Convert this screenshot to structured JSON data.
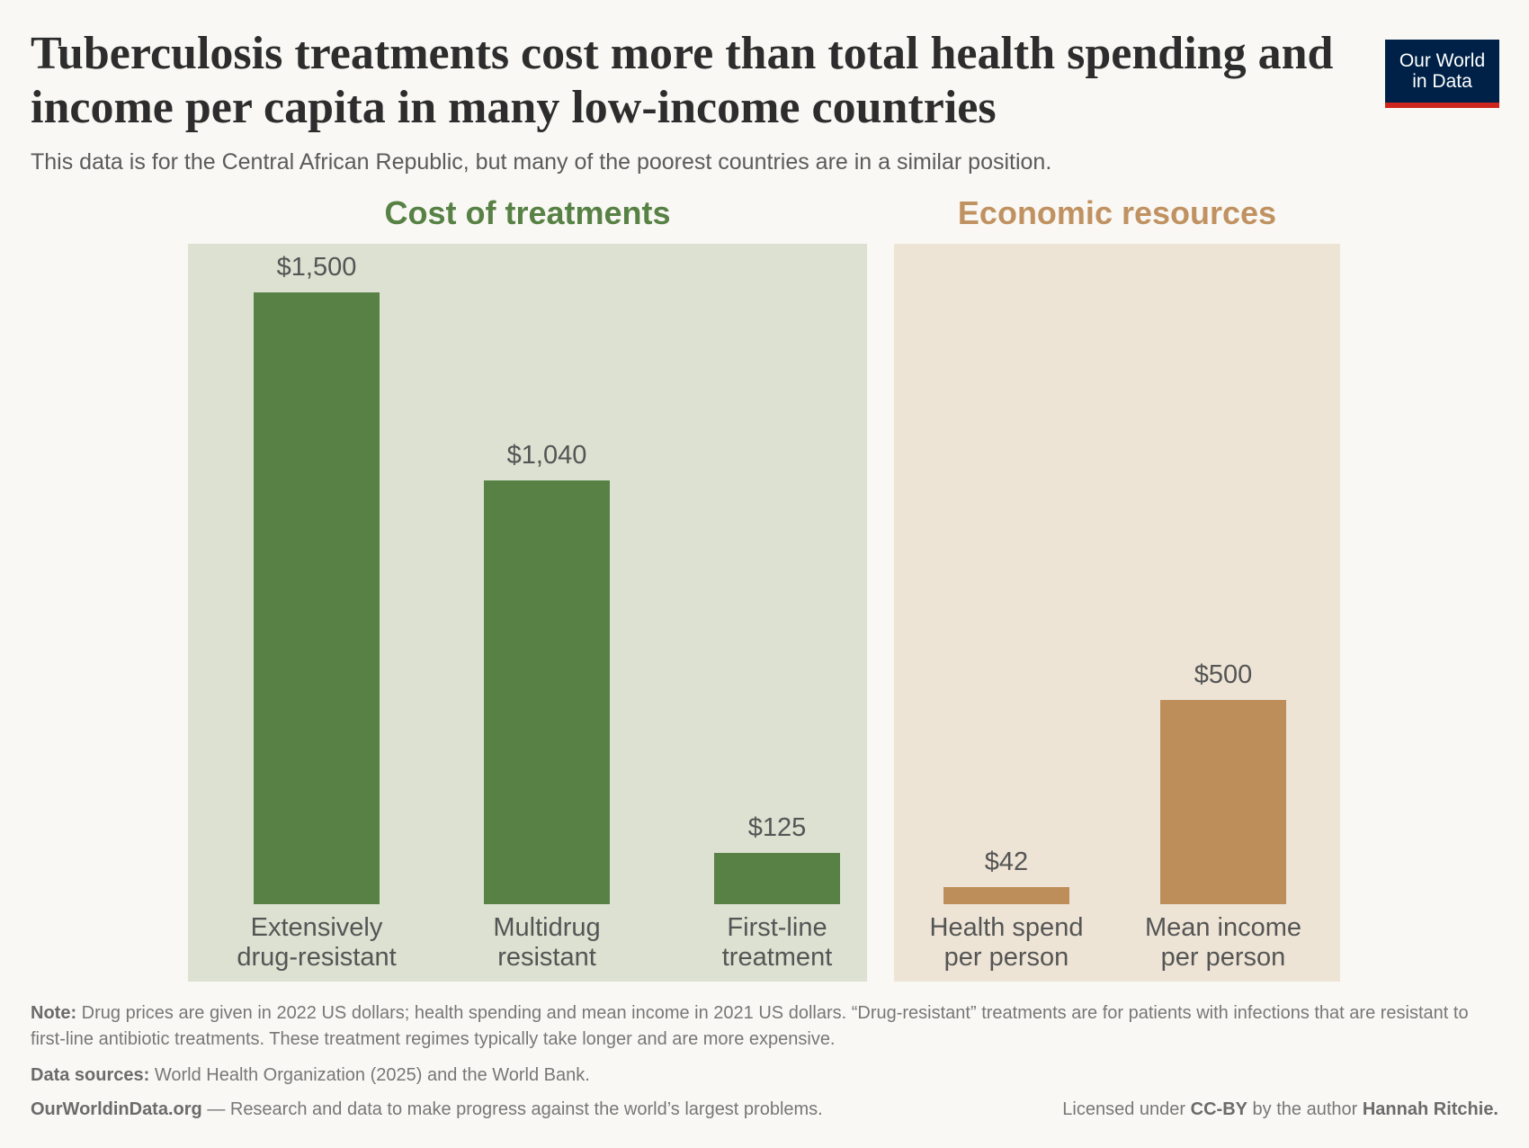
{
  "header": {
    "title": "Tuberculosis treatments cost more than total health spending and income per capita in many low-income countries",
    "subtitle": "This data is for the Central African Republic, but many of the poorest countries are in a similar position.",
    "logo": "Our World in Data"
  },
  "chart_data": {
    "type": "bar",
    "title": "Tuberculosis treatments cost more than total health spending and income per capita in many low-income countries",
    "ylim": [
      0,
      1500
    ],
    "grid": false,
    "groups": [
      {
        "name": "Cost of treatments",
        "color": "#578145",
        "background": "#dce1d1",
        "categories": [
          "Extensively\ndrug-resistant",
          "Multidrug\nresistant",
          "First-line\ntreatment"
        ],
        "values": [
          1500,
          1040,
          125
        ],
        "labels": [
          "$1,500",
          "$1,040",
          "$125"
        ]
      },
      {
        "name": "Economic resources",
        "color": "#be8e5a",
        "background": "#ede4d5",
        "categories": [
          "Health spend\nper person",
          "Mean income\nper person"
        ],
        "values": [
          42,
          500
        ],
        "labels": [
          "$42",
          "$500"
        ]
      }
    ]
  },
  "footer": {
    "note_label": "Note:",
    "note": "Drug prices are given in 2022 US dollars; health spending and mean income in 2021 US dollars. “Drug-resistant” treatments are for patients with infections that are resistant to first-line antibiotic treatments. These treatment regimes typically take longer and are more expensive.",
    "sources_label": "Data sources:",
    "sources": "World Health Organization (2025) and the World Bank.",
    "site": "OurWorldinData.org",
    "tagline": "— Research and data to make progress against the world’s largest problems.",
    "license_prefix": "Licensed under",
    "license": "CC-BY",
    "license_mid": "by the author",
    "author": "Hannah Ritchie."
  }
}
